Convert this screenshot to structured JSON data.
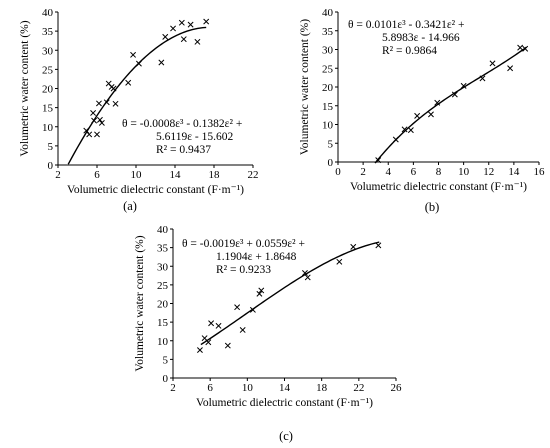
{
  "chart_data": [
    {
      "panel": "(a)",
      "type": "scatter",
      "xlabel": "Volumetric dielectric constant (F·m⁻¹)",
      "ylabel": "Volumetric water content (%)",
      "xlim": [
        2,
        22
      ],
      "ylim": [
        0,
        40
      ],
      "xticks": [
        2,
        6,
        10,
        14,
        18,
        22
      ],
      "yticks": [
        0,
        5,
        10,
        15,
        20,
        25,
        30,
        35,
        40
      ],
      "equation": [
        "θ = -0.0008ε³ - 0.1382ε² +",
        "5.6119ε - 15.602"
      ],
      "r2": "R² = 0.9437",
      "coefficients": [
        -0.0008,
        -0.1382,
        5.6119,
        -15.602
      ],
      "fit_range": [
        3.05,
        17.2
      ],
      "points": [
        [
          4.9,
          9.0
        ],
        [
          5.2,
          8.0
        ],
        [
          5.6,
          13.6
        ],
        [
          5.7,
          11.6
        ],
        [
          6.0,
          8.0
        ],
        [
          6.2,
          16.1
        ],
        [
          6.3,
          11.8
        ],
        [
          6.5,
          11.0
        ],
        [
          7.0,
          16.4
        ],
        [
          7.2,
          21.3
        ],
        [
          7.5,
          20.4
        ],
        [
          7.7,
          20.0
        ],
        [
          7.9,
          16.0
        ],
        [
          9.2,
          21.5
        ],
        [
          9.7,
          28.8
        ],
        [
          10.3,
          26.5
        ],
        [
          12.6,
          26.8
        ],
        [
          13.0,
          33.5
        ],
        [
          13.8,
          35.7
        ],
        [
          14.7,
          37.2
        ],
        [
          14.9,
          32.9
        ],
        [
          15.6,
          36.7
        ],
        [
          16.3,
          32.2
        ],
        [
          17.2,
          37.5
        ]
      ]
    },
    {
      "panel": "(b)",
      "type": "scatter",
      "xlabel": "Volumetric dielectric constant (F·m⁻¹)",
      "ylabel": "Volumetric water content (%)",
      "xlim": [
        0,
        16
      ],
      "ylim": [
        0,
        40
      ],
      "xticks": [
        0,
        2,
        4,
        6,
        8,
        10,
        12,
        14,
        16
      ],
      "yticks": [
        0,
        5,
        10,
        15,
        20,
        25,
        30,
        35,
        40
      ],
      "equation": [
        "θ = 0.0101ε³ - 0.3421ε² +",
        "5.8983ε - 14.966"
      ],
      "r2": "R² = 0.9864",
      "coefficients": [
        0.0101,
        -0.3421,
        5.8983,
        -14.966
      ],
      "fit_range": [
        2.95,
        15.0
      ],
      "points": [
        [
          3.2,
          0.5
        ],
        [
          4.6,
          6.0
        ],
        [
          5.3,
          8.7
        ],
        [
          5.8,
          8.5
        ],
        [
          6.3,
          12.3
        ],
        [
          7.4,
          12.7
        ],
        [
          7.9,
          15.8
        ],
        [
          9.3,
          18.0
        ],
        [
          10.0,
          20.3
        ],
        [
          11.5,
          22.3
        ],
        [
          12.3,
          26.3
        ],
        [
          13.7,
          25.0
        ],
        [
          14.5,
          30.5
        ],
        [
          14.9,
          30.2
        ]
      ]
    },
    {
      "panel": "(c)",
      "type": "scatter",
      "xlabel": "Volumetric dielectric constant (F·m⁻¹)",
      "ylabel": "Volumetric water content (%)",
      "xlim": [
        2,
        26
      ],
      "ylim": [
        0,
        40
      ],
      "xticks": [
        2,
        6,
        10,
        14,
        18,
        22,
        26
      ],
      "yticks": [
        0,
        5,
        10,
        15,
        20,
        25,
        30,
        35,
        40
      ],
      "equation": [
        "θ = -0.0019ε³ + 0.0559ε² +",
        "1.1904ε + 1.8648"
      ],
      "r2": "R² = 0.9233",
      "coefficients": [
        -0.0019,
        0.0559,
        1.1904,
        1.8648
      ],
      "fit_range": [
        5.0,
        24.2
      ],
      "points": [
        [
          4.9,
          7.5
        ],
        [
          5.4,
          10.7
        ],
        [
          5.8,
          9.6
        ],
        [
          6.1,
          14.7
        ],
        [
          6.9,
          14.0
        ],
        [
          7.9,
          8.7
        ],
        [
          8.9,
          19.0
        ],
        [
          9.5,
          12.9
        ],
        [
          10.6,
          18.3
        ],
        [
          11.3,
          22.6
        ],
        [
          11.5,
          23.5
        ],
        [
          16.2,
          28.2
        ],
        [
          16.5,
          27.0
        ],
        [
          19.9,
          31.2
        ],
        [
          21.4,
          35.2
        ],
        [
          24.1,
          35.6
        ]
      ]
    }
  ]
}
